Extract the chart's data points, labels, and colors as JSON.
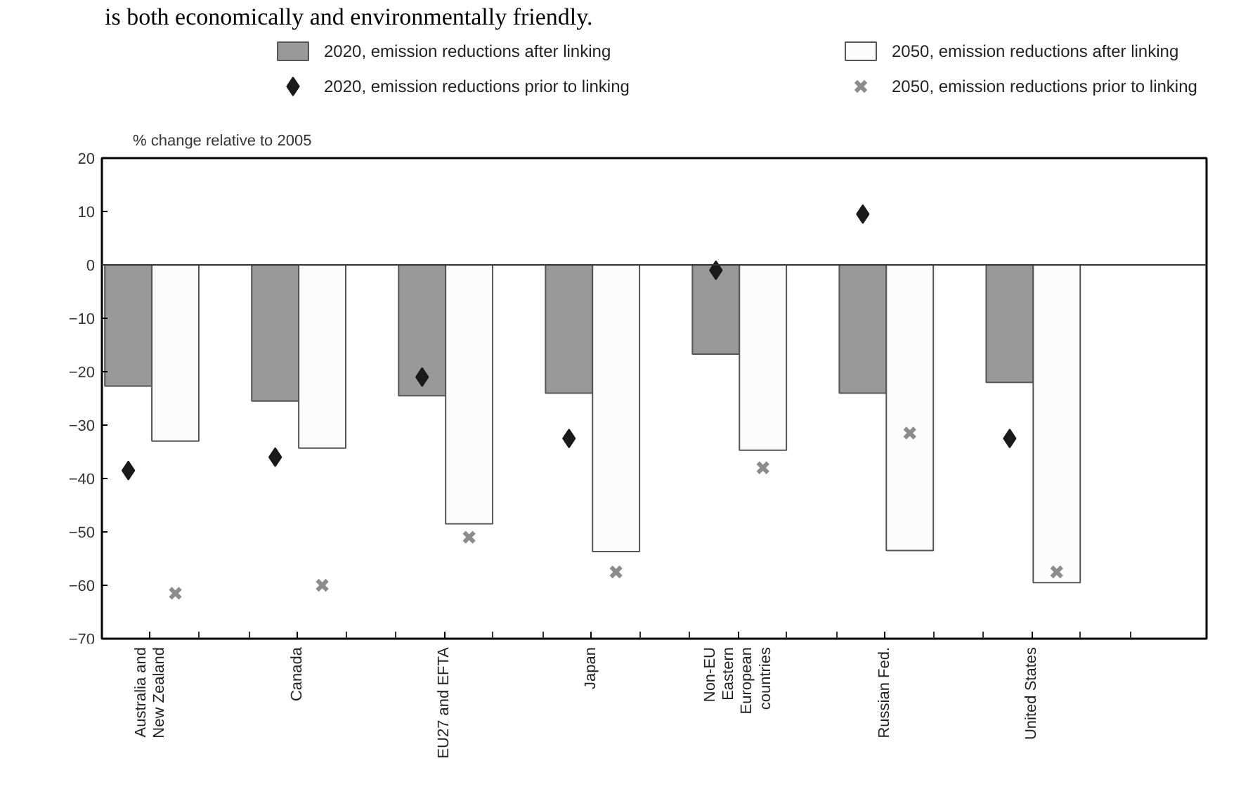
{
  "chart_data": {
    "type": "bar",
    "ylabel": "% change relative to 2005",
    "annotations": [
      "is both economically and environmentally friendly."
    ],
    "categories": [
      "Australia and\nNew Zealand",
      "Canada",
      "EU27 and EFTA",
      "Japan",
      "Non-EU\nEastern\nEuropean\ncountries",
      "Russian Fed.",
      "United States"
    ],
    "series": [
      {
        "name": "2020, emission reductions after linking",
        "color": "#999999",
        "values": [
          -22.7,
          -25.5,
          -24.5,
          -24,
          -16.7,
          -24,
          -22
        ]
      },
      {
        "name": "2050, emission reductions after linking",
        "color": "#fcfcfc",
        "values": [
          -33,
          -34.3,
          -48.5,
          -53.7,
          -34.7,
          -53.5,
          -59.5
        ]
      },
      {
        "name": "2020, emission reductions prior to linking",
        "type": "scatter",
        "marker": "diamond",
        "color": "#1a1a1a",
        "x": [
          "Australia and\nNew Zealand",
          "Canada",
          "EU27 and EFTA",
          "Japan",
          "Non-EU\nEastern\nEuropean\ncountries",
          "Russian Fed.",
          "United States"
        ],
        "values": [
          -38.5,
          -36,
          -21,
          -32.5,
          -1,
          9.5,
          -32.5
        ]
      },
      {
        "name": "2050, emission reductions prior to linking",
        "type": "scatter",
        "marker": "cross",
        "color": "#8c8c8c",
        "x": [
          "Australia and\nNew Zealand",
          "Canada",
          "EU27 and EFTA",
          "Japan",
          "Non-EU\nEastern\nEuropean\ncountries",
          "Russian Fed.",
          "United States"
        ],
        "values": [
          -61.5,
          -60,
          -51,
          -57.5,
          -38,
          -31.5,
          -57.5
        ]
      }
    ],
    "ylim": [
      -70,
      20
    ],
    "yticks": [
      -70,
      -60,
      -50,
      -40,
      -30,
      -20,
      -10,
      0,
      10,
      20
    ],
    "ref_lines": [
      {
        "axis": "y",
        "value": 0,
        "color": "#333333"
      }
    ],
    "grid": false,
    "legend": "top"
  }
}
